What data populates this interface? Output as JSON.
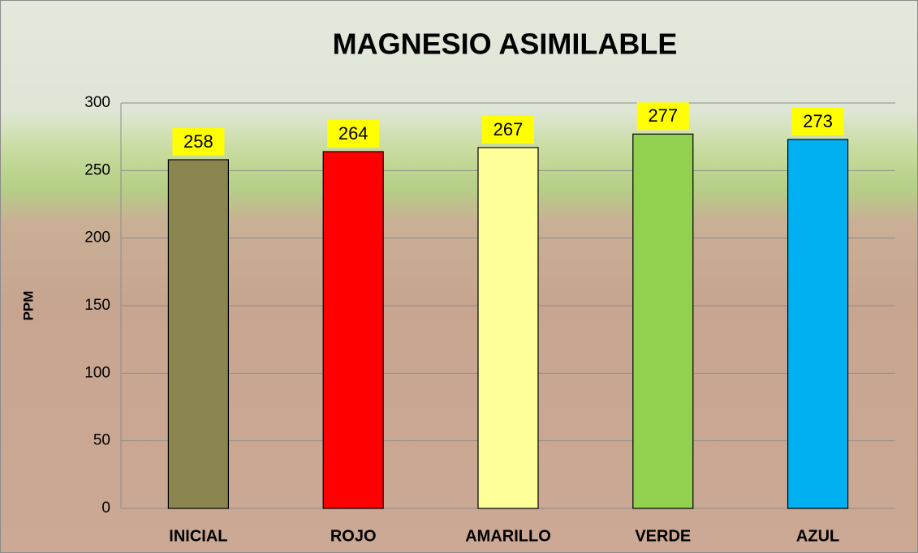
{
  "chart_data": {
    "type": "bar",
    "title": "MAGNESIO ASIMILABLE",
    "y_label": "PPM",
    "categories": [
      "INICIAL",
      "ROJO",
      "AMARILLO",
      "VERDE",
      "AZUL"
    ],
    "values": [
      258,
      264,
      267,
      277,
      273
    ],
    "colors": [
      "#8b8550",
      "#ff0000",
      "#ffff99",
      "#92d050",
      "#00b0f0"
    ],
    "label_background": "#ffff00",
    "ylim": [
      0,
      300
    ],
    "yticks": [
      0,
      50,
      100,
      150,
      200,
      250,
      300
    ],
    "grid": true
  }
}
